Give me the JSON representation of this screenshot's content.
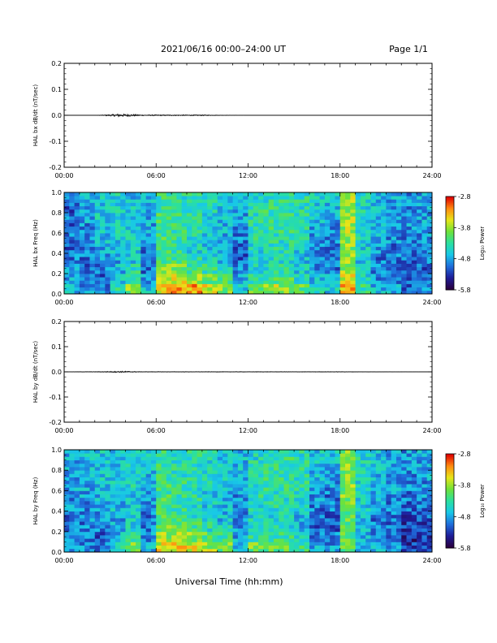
{
  "header": {
    "title": "2021/06/16  00:00–24:00 UT",
    "page": "Page 1/1"
  },
  "footer": {
    "xlabel": "Universal Time (hh:mm)"
  },
  "colors": {
    "spectrogram_cmap": [
      "#2a0040",
      "#1e1e9a",
      "#1f6fdc",
      "#18c8e8",
      "#2ae0a0",
      "#6ee23a",
      "#e6e619",
      "#ff8c10",
      "#e00000"
    ],
    "trace": "#000000",
    "background": "#ffffff"
  },
  "chart_data": [
    {
      "type": "line",
      "ylabel": "HAL bx dB/dt (nT/sec)",
      "xlim": [
        0,
        24
      ],
      "ylim": [
        -0.2,
        0.2
      ],
      "x_ticks": [
        "00:00",
        "06:00",
        "12:00",
        "18:00",
        "24:00"
      ],
      "y_ticks": [
        "0.2",
        "0.1",
        "0.0",
        "-0.1",
        "-0.2"
      ],
      "series": [
        {
          "x": [
            0,
            1,
            2,
            3,
            3.5,
            4,
            4.5,
            5,
            6,
            7,
            8,
            9,
            10,
            12,
            18,
            24
          ],
          "y": [
            0,
            0,
            0,
            0.003,
            0.006,
            0.005,
            0.004,
            0.002,
            0.002,
            0.002,
            0.002,
            0.002,
            0.001,
            0,
            0,
            0
          ]
        }
      ]
    },
    {
      "type": "heatmap",
      "ylabel": "HAL bx Freq (Hz)",
      "xlim": [
        0,
        24
      ],
      "ylim": [
        0,
        1.0
      ],
      "x_ticks": [
        "00:00",
        "06:00",
        "12:00",
        "18:00",
        "24:00"
      ],
      "y_ticks": [
        "1.0",
        "0.8",
        "0.6",
        "0.4",
        "0.2",
        "0.0"
      ],
      "colorbar": {
        "label": "Log₁₀ Power",
        "ticks": [
          "-2.8",
          "-3.8",
          "-4.8",
          "-5.8"
        ],
        "range": [
          -5.8,
          -2.8
        ]
      },
      "grid_hours": [
        0,
        1,
        2,
        3,
        4,
        5,
        6,
        7,
        8,
        9,
        10,
        11,
        12,
        13,
        14,
        15,
        16,
        17,
        18,
        19,
        20,
        21,
        22,
        23
      ],
      "grid_freqs": [
        0.05,
        0.15,
        0.25,
        0.35,
        0.45,
        0.55,
        0.65,
        0.75,
        0.85,
        0.95
      ],
      "values": [
        [
          -4.7,
          -4.8,
          -4.9,
          -5.0,
          -5.1,
          -5.0,
          -5.1,
          -5.0,
          -5.1,
          -5.0
        ],
        [
          -4.9,
          -5.0,
          -5.1,
          -5.0,
          -5.0,
          -4.9,
          -4.9,
          -4.8,
          -4.8,
          -4.8
        ],
        [
          -5.0,
          -5.1,
          -5.0,
          -4.9,
          -4.8,
          -4.7,
          -4.6,
          -4.6,
          -4.6,
          -4.6
        ],
        [
          -4.4,
          -4.6,
          -4.7,
          -4.8,
          -4.7,
          -4.6,
          -4.5,
          -4.5,
          -4.5,
          -4.5
        ],
        [
          -3.9,
          -4.2,
          -4.4,
          -4.6,
          -4.6,
          -4.6,
          -4.6,
          -4.6,
          -4.6,
          -4.7
        ],
        [
          -4.6,
          -4.9,
          -5.0,
          -5.1,
          -5.0,
          -4.9,
          -4.8,
          -4.8,
          -4.7,
          -4.7
        ],
        [
          -3.5,
          -3.7,
          -3.9,
          -4.1,
          -4.2,
          -4.2,
          -4.2,
          -4.2,
          -4.3,
          -4.3
        ],
        [
          -3.2,
          -3.6,
          -3.9,
          -4.2,
          -4.3,
          -4.3,
          -4.3,
          -4.3,
          -4.4,
          -4.4
        ],
        [
          -3.3,
          -3.8,
          -4.2,
          -4.4,
          -4.5,
          -4.4,
          -4.4,
          -4.4,
          -4.4,
          -4.4
        ],
        [
          -3.6,
          -4.0,
          -4.3,
          -4.5,
          -4.6,
          -4.6,
          -4.6,
          -4.5,
          -4.5,
          -4.5
        ],
        [
          -3.9,
          -4.2,
          -4.5,
          -4.7,
          -4.8,
          -4.8,
          -4.7,
          -4.7,
          -4.6,
          -4.6
        ],
        [
          -4.6,
          -4.8,
          -5.0,
          -5.1,
          -5.1,
          -5.0,
          -4.9,
          -4.8,
          -4.8,
          -4.7
        ],
        [
          -4.0,
          -4.3,
          -4.5,
          -4.5,
          -4.5,
          -4.4,
          -4.4,
          -4.4,
          -4.4,
          -4.5
        ],
        [
          -3.8,
          -4.2,
          -4.4,
          -4.5,
          -4.4,
          -4.4,
          -4.3,
          -4.3,
          -4.3,
          -4.4
        ],
        [
          -3.9,
          -4.2,
          -4.4,
          -4.5,
          -4.4,
          -4.4,
          -4.3,
          -4.3,
          -4.3,
          -4.3
        ],
        [
          -4.1,
          -4.4,
          -4.6,
          -4.7,
          -4.6,
          -4.5,
          -4.4,
          -4.4,
          -4.4,
          -4.4
        ],
        [
          -4.5,
          -4.7,
          -4.9,
          -5.0,
          -5.0,
          -4.9,
          -4.8,
          -4.7,
          -4.6,
          -4.6
        ],
        [
          -4.6,
          -4.8,
          -5.0,
          -5.1,
          -5.0,
          -5.0,
          -4.9,
          -4.8,
          -4.7,
          -4.6
        ],
        [
          -3.3,
          -3.6,
          -3.8,
          -3.9,
          -3.9,
          -3.9,
          -3.8,
          -3.8,
          -3.8,
          -3.8
        ],
        [
          -4.3,
          -4.5,
          -4.6,
          -4.6,
          -4.6,
          -4.5,
          -4.5,
          -4.5,
          -4.5,
          -4.5
        ],
        [
          -4.7,
          -4.9,
          -5.0,
          -5.0,
          -4.9,
          -4.8,
          -4.8,
          -4.7,
          -4.7,
          -4.7
        ],
        [
          -4.8,
          -5.0,
          -5.1,
          -5.0,
          -5.0,
          -4.9,
          -4.8,
          -4.8,
          -4.8,
          -4.8
        ],
        [
          -5.1,
          -5.2,
          -5.2,
          -5.1,
          -5.0,
          -5.0,
          -4.9,
          -4.9,
          -4.9,
          -4.9
        ],
        [
          -5.0,
          -5.1,
          -5.1,
          -5.0,
          -4.9,
          -4.9,
          -4.9,
          -4.8,
          -4.8,
          -4.8
        ]
      ]
    },
    {
      "type": "line",
      "ylabel": "HAL by dB/dt (nT/sec)",
      "xlim": [
        0,
        24
      ],
      "ylim": [
        -0.2,
        0.2
      ],
      "x_ticks": [
        "00:00",
        "06:00",
        "12:00",
        "18:00",
        "24:00"
      ],
      "y_ticks": [
        "0.2",
        "0.1",
        "0.0",
        "-0.1",
        "-0.2"
      ],
      "series": [
        {
          "x": [
            0,
            1,
            2,
            3,
            3.5,
            4,
            4.5,
            5,
            6,
            8,
            10,
            12,
            14,
            16,
            18,
            24
          ],
          "y": [
            0,
            0.001,
            0.001,
            0.002,
            0.003,
            0.003,
            0.002,
            0.001,
            0.001,
            0.001,
            0.001,
            0.001,
            0.001,
            0.001,
            0.001,
            0
          ]
        }
      ]
    },
    {
      "type": "heatmap",
      "ylabel": "HAL by Freq (Hz)",
      "xlim": [
        0,
        24
      ],
      "ylim": [
        0,
        1.0
      ],
      "x_ticks": [
        "00:00",
        "06:00",
        "12:00",
        "18:00",
        "24:00"
      ],
      "y_ticks": [
        "1.0",
        "0.8",
        "0.6",
        "0.4",
        "0.2",
        "0.0"
      ],
      "colorbar": {
        "label": "Log₁₀ Power",
        "ticks": [
          "-2.8",
          "-3.8",
          "-4.8",
          "-5.8"
        ],
        "range": [
          -5.8,
          -2.8
        ]
      },
      "grid_hours": [
        0,
        1,
        2,
        3,
        4,
        5,
        6,
        7,
        8,
        9,
        10,
        11,
        12,
        13,
        14,
        15,
        16,
        17,
        18,
        19,
        20,
        21,
        22,
        23
      ],
      "grid_freqs": [
        0.05,
        0.15,
        0.25,
        0.35,
        0.45,
        0.55,
        0.65,
        0.75,
        0.85,
        0.95
      ],
      "values": [
        [
          -4.8,
          -4.9,
          -5.0,
          -5.0,
          -4.9,
          -4.9,
          -4.8,
          -4.8,
          -4.8,
          -4.8
        ],
        [
          -4.9,
          -5.0,
          -5.0,
          -4.9,
          -4.9,
          -4.8,
          -4.8,
          -4.7,
          -4.7,
          -4.7
        ],
        [
          -5.0,
          -5.1,
          -5.0,
          -4.9,
          -4.8,
          -4.7,
          -4.7,
          -4.6,
          -4.6,
          -4.6
        ],
        [
          -4.5,
          -4.7,
          -4.8,
          -4.8,
          -4.7,
          -4.6,
          -4.6,
          -4.6,
          -4.6,
          -4.6
        ],
        [
          -4.0,
          -4.3,
          -4.5,
          -4.6,
          -4.6,
          -4.6,
          -4.5,
          -4.5,
          -4.5,
          -4.6
        ],
        [
          -4.7,
          -4.9,
          -5.0,
          -5.0,
          -4.9,
          -4.8,
          -4.7,
          -4.7,
          -4.6,
          -4.6
        ],
        [
          -3.6,
          -3.8,
          -4.0,
          -4.1,
          -4.2,
          -4.2,
          -4.2,
          -4.3,
          -4.3,
          -4.3
        ],
        [
          -3.5,
          -3.8,
          -4.0,
          -4.2,
          -4.3,
          -4.3,
          -4.3,
          -4.4,
          -4.4,
          -4.4
        ],
        [
          -3.6,
          -3.9,
          -4.2,
          -4.4,
          -4.5,
          -4.4,
          -4.4,
          -4.4,
          -4.4,
          -4.4
        ],
        [
          -3.8,
          -4.1,
          -4.4,
          -4.5,
          -4.6,
          -4.6,
          -4.5,
          -4.5,
          -4.5,
          -4.5
        ],
        [
          -4.0,
          -4.3,
          -4.5,
          -4.7,
          -4.7,
          -4.7,
          -4.6,
          -4.6,
          -4.6,
          -4.6
        ],
        [
          -4.6,
          -4.8,
          -4.9,
          -5.0,
          -4.9,
          -4.9,
          -4.8,
          -4.7,
          -4.7,
          -4.7
        ],
        [
          -4.0,
          -4.3,
          -4.5,
          -4.5,
          -4.5,
          -4.4,
          -4.4,
          -4.4,
          -4.4,
          -4.5
        ],
        [
          -4.0,
          -4.3,
          -4.5,
          -4.5,
          -4.4,
          -4.4,
          -4.3,
          -4.3,
          -4.3,
          -4.4
        ],
        [
          -4.1,
          -4.3,
          -4.5,
          -4.5,
          -4.4,
          -4.4,
          -4.3,
          -4.3,
          -4.3,
          -4.3
        ],
        [
          -4.3,
          -4.5,
          -4.7,
          -4.7,
          -4.6,
          -4.5,
          -4.4,
          -4.4,
          -4.4,
          -4.4
        ],
        [
          -4.8,
          -5.0,
          -5.1,
          -5.1,
          -5.0,
          -4.9,
          -4.8,
          -4.7,
          -4.6,
          -4.6
        ],
        [
          -4.9,
          -5.0,
          -5.1,
          -5.1,
          -5.0,
          -5.0,
          -4.9,
          -4.8,
          -4.7,
          -4.6
        ],
        [
          -4.0,
          -4.1,
          -4.2,
          -4.1,
          -4.0,
          -3.9,
          -3.9,
          -3.9,
          -3.9,
          -3.9
        ],
        [
          -4.6,
          -4.7,
          -4.7,
          -4.7,
          -4.6,
          -4.6,
          -4.6,
          -4.5,
          -4.5,
          -4.5
        ],
        [
          -4.8,
          -4.9,
          -5.0,
          -5.0,
          -4.9,
          -4.8,
          -4.8,
          -4.7,
          -4.7,
          -4.7
        ],
        [
          -4.9,
          -5.0,
          -5.1,
          -5.0,
          -5.0,
          -4.9,
          -4.8,
          -4.8,
          -4.8,
          -4.8
        ],
        [
          -5.3,
          -5.4,
          -5.3,
          -5.2,
          -5.1,
          -5.0,
          -4.9,
          -4.9,
          -4.9,
          -4.9
        ],
        [
          -5.2,
          -5.3,
          -5.2,
          -5.1,
          -5.0,
          -4.9,
          -4.9,
          -4.8,
          -4.8,
          -4.8
        ]
      ]
    }
  ]
}
